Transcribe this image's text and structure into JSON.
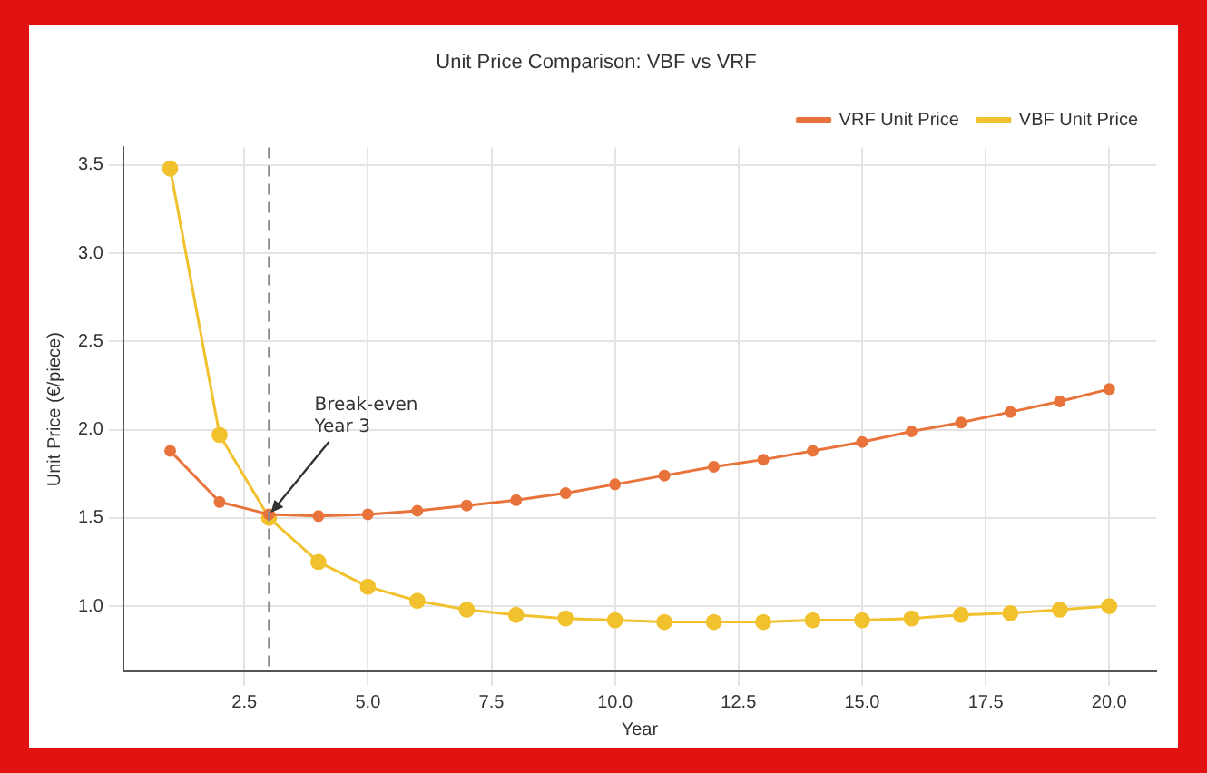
{
  "chart_data": {
    "type": "line",
    "title": "Unit Price Comparison: VBF vs VRF",
    "xlabel": "Year",
    "ylabel": "Unit Price (€/piece)",
    "x": [
      1,
      2,
      3,
      4,
      5,
      6,
      7,
      8,
      9,
      10,
      11,
      12,
      13,
      14,
      15,
      16,
      17,
      18,
      19,
      20
    ],
    "series": [
      {
        "name": "VBF Unit Price",
        "color": "#f2c12e",
        "values": [
          3.48,
          1.97,
          1.5,
          1.25,
          1.11,
          1.03,
          0.98,
          0.95,
          0.93,
          0.92,
          0.91,
          0.91,
          0.91,
          0.92,
          0.92,
          0.93,
          0.95,
          0.96,
          0.98,
          1.0
        ]
      },
      {
        "name": "VRF Unit Price",
        "color": "#e8743b",
        "values": [
          1.88,
          1.59,
          1.52,
          1.51,
          1.52,
          1.54,
          1.57,
          1.6,
          1.64,
          1.69,
          1.74,
          1.79,
          1.83,
          1.88,
          1.93,
          1.99,
          2.04,
          2.1,
          2.16,
          2.23
        ]
      }
    ],
    "xlim": [
      0.05,
      20.95
    ],
    "xticks": [
      2.5,
      {
        "value": 5,
        "label": "5.0"
      },
      7.5,
      {
        "value": 10,
        "label": "10.0"
      },
      12.5,
      {
        "value": 15,
        "label": "15.0"
      },
      17.5,
      {
        "value": 20,
        "label": "20.0"
      }
    ],
    "ylim": [
      0.63,
      3.6
    ],
    "yticks": [
      {
        "value": 1,
        "label": "1.0"
      },
      1.5,
      {
        "value": 2,
        "label": "2.0"
      },
      2.5,
      {
        "value": 3,
        "label": "3.0"
      },
      3.5
    ],
    "ref_lines": [
      {
        "axis": "x",
        "value": 3,
        "color": "#888888",
        "line_style": "dashed"
      }
    ],
    "annotations": [
      {
        "text": "Break-even\nYear 3",
        "x": 3,
        "y": 1.52
      }
    ],
    "grid": true,
    "legend": "top right",
    "marker": "circle",
    "line_style": "solid"
  }
}
